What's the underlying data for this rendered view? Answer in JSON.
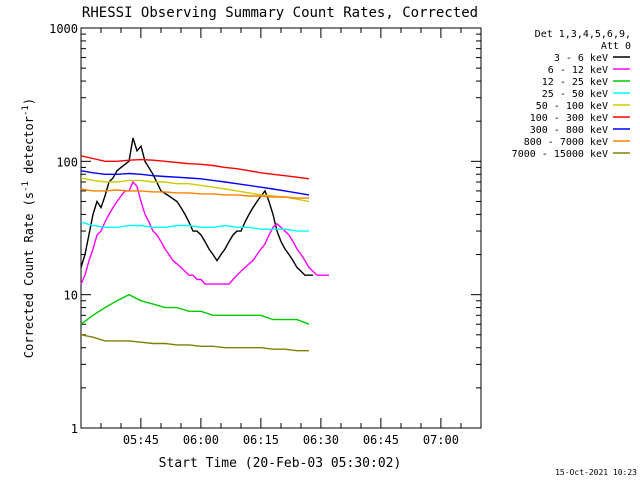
{
  "chart_data": {
    "type": "line",
    "title": "RHESSI Observing Summary Count Rates, Corrected",
    "xlabel": "Start Time (20-Feb-03 05:30:02)",
    "ylabel": "Corrected Count Rate (s",
    "ylabel_sup1": "-1",
    "ylabel_mid": " detector",
    "ylabel_sup2": "-1",
    "ylabel_end": ")",
    "timestamp": "15-Oct-2021 10:23",
    "yscale": "log",
    "ylim": [
      1,
      1000
    ],
    "xlim_minutes": [
      0,
      100
    ],
    "ytick_values": [
      1,
      10,
      100,
      1000
    ],
    "ytick_labels": [
      "1",
      "10",
      "100",
      "1000"
    ],
    "xticks": [
      {
        "label": "05:45",
        "minute": 14.97
      },
      {
        "label": "06:00",
        "minute": 29.97
      },
      {
        "label": "06:15",
        "minute": 44.97
      },
      {
        "label": "06:30",
        "minute": 59.97
      },
      {
        "label": "06:45",
        "minute": 74.97
      },
      {
        "label": "07:00",
        "minute": 89.97
      }
    ],
    "legend": {
      "header": [
        "Det 1,3,4,5,6,9,",
        "Att 0"
      ],
      "position": "right"
    },
    "series": [
      {
        "name": "3 - 6 keV",
        "color": "#000000",
        "points": [
          [
            0,
            16
          ],
          [
            1,
            20
          ],
          [
            3,
            40
          ],
          [
            4,
            50
          ],
          [
            5,
            45
          ],
          [
            6,
            55
          ],
          [
            7,
            70
          ],
          [
            8,
            75
          ],
          [
            9,
            85
          ],
          [
            10,
            90
          ],
          [
            11,
            95
          ],
          [
            12,
            100
          ],
          [
            13,
            150
          ],
          [
            14,
            120
          ],
          [
            15,
            130
          ],
          [
            16,
            100
          ],
          [
            18,
            80
          ],
          [
            20,
            60
          ],
          [
            22,
            55
          ],
          [
            24,
            50
          ],
          [
            25,
            45
          ],
          [
            26,
            40
          ],
          [
            27,
            35
          ],
          [
            28,
            30
          ],
          [
            29,
            30
          ],
          [
            30,
            28
          ],
          [
            31,
            25
          ],
          [
            32,
            22
          ],
          [
            33,
            20
          ],
          [
            34,
            18
          ],
          [
            35,
            20
          ],
          [
            36,
            22
          ],
          [
            37,
            25
          ],
          [
            38,
            28
          ],
          [
            39,
            30
          ],
          [
            40,
            30
          ],
          [
            41,
            35
          ],
          [
            42,
            40
          ],
          [
            43,
            45
          ],
          [
            44,
            50
          ],
          [
            45,
            55
          ],
          [
            46,
            60
          ],
          [
            47,
            50
          ],
          [
            48,
            40
          ],
          [
            49,
            30
          ],
          [
            50,
            25
          ],
          [
            51,
            22
          ],
          [
            52,
            20
          ],
          [
            53,
            18
          ],
          [
            54,
            16
          ],
          [
            55,
            15
          ],
          [
            56,
            14
          ],
          [
            57,
            14
          ],
          [
            58,
            14
          ]
        ]
      },
      {
        "name": "6 - 12 keV",
        "color": "#ff00ff",
        "points": [
          [
            0,
            12
          ],
          [
            1,
            14
          ],
          [
            2,
            18
          ],
          [
            3,
            22
          ],
          [
            4,
            28
          ],
          [
            5,
            30
          ],
          [
            6,
            35
          ],
          [
            7,
            40
          ],
          [
            8,
            45
          ],
          [
            9,
            50
          ],
          [
            10,
            55
          ],
          [
            11,
            60
          ],
          [
            12,
            60
          ],
          [
            13,
            70
          ],
          [
            14,
            65
          ],
          [
            15,
            50
          ],
          [
            16,
            40
          ],
          [
            17,
            35
          ],
          [
            18,
            30
          ],
          [
            19,
            28
          ],
          [
            20,
            25
          ],
          [
            21,
            22
          ],
          [
            22,
            20
          ],
          [
            23,
            18
          ],
          [
            24,
            17
          ],
          [
            25,
            16
          ],
          [
            26,
            15
          ],
          [
            27,
            14
          ],
          [
            28,
            14
          ],
          [
            29,
            13
          ],
          [
            30,
            13
          ],
          [
            31,
            12
          ],
          [
            32,
            12
          ],
          [
            33,
            12
          ],
          [
            34,
            12
          ],
          [
            35,
            12
          ],
          [
            36,
            12
          ],
          [
            37,
            12
          ],
          [
            38,
            13
          ],
          [
            39,
            14
          ],
          [
            40,
            15
          ],
          [
            41,
            16
          ],
          [
            42,
            17
          ],
          [
            43,
            18
          ],
          [
            44,
            20
          ],
          [
            45,
            22
          ],
          [
            46,
            24
          ],
          [
            47,
            28
          ],
          [
            48,
            32
          ],
          [
            49,
            34
          ],
          [
            50,
            32
          ],
          [
            51,
            30
          ],
          [
            52,
            28
          ],
          [
            53,
            25
          ],
          [
            54,
            22
          ],
          [
            55,
            20
          ],
          [
            56,
            18
          ],
          [
            57,
            16
          ],
          [
            58,
            15
          ],
          [
            59,
            14
          ],
          [
            60,
            14
          ],
          [
            61,
            14
          ],
          [
            62,
            14
          ]
        ]
      },
      {
        "name": "12 - 25 keV",
        "color": "#00cc00",
        "points": [
          [
            0,
            6
          ],
          [
            3,
            7
          ],
          [
            6,
            8
          ],
          [
            9,
            9
          ],
          [
            12,
            10
          ],
          [
            15,
            9
          ],
          [
            18,
            8.5
          ],
          [
            21,
            8
          ],
          [
            24,
            8
          ],
          [
            27,
            7.5
          ],
          [
            30,
            7.5
          ],
          [
            33,
            7
          ],
          [
            36,
            7
          ],
          [
            39,
            7
          ],
          [
            42,
            7
          ],
          [
            45,
            7
          ],
          [
            48,
            6.5
          ],
          [
            51,
            6.5
          ],
          [
            54,
            6.5
          ],
          [
            57,
            6
          ]
        ]
      },
      {
        "name": "25 - 50 keV",
        "color": "#00ffff",
        "points": [
          [
            0,
            35
          ],
          [
            3,
            33
          ],
          [
            6,
            32
          ],
          [
            9,
            32
          ],
          [
            12,
            33
          ],
          [
            15,
            33
          ],
          [
            18,
            32
          ],
          [
            21,
            32
          ],
          [
            24,
            33
          ],
          [
            27,
            33
          ],
          [
            30,
            32
          ],
          [
            33,
            32
          ],
          [
            36,
            33
          ],
          [
            39,
            32
          ],
          [
            42,
            32
          ],
          [
            45,
            31
          ],
          [
            48,
            31
          ],
          [
            51,
            31
          ],
          [
            54,
            30
          ],
          [
            57,
            30
          ]
        ]
      },
      {
        "name": "50 - 100 keV",
        "color": "#cccc00",
        "points": [
          [
            0,
            75
          ],
          [
            3,
            72
          ],
          [
            6,
            70
          ],
          [
            9,
            70
          ],
          [
            12,
            72
          ],
          [
            15,
            72
          ],
          [
            18,
            70
          ],
          [
            21,
            70
          ],
          [
            24,
            68
          ],
          [
            27,
            68
          ],
          [
            30,
            66
          ],
          [
            33,
            64
          ],
          [
            36,
            62
          ],
          [
            39,
            60
          ],
          [
            42,
            58
          ],
          [
            45,
            56
          ],
          [
            48,
            55
          ],
          [
            51,
            54
          ],
          [
            54,
            52
          ],
          [
            57,
            50
          ]
        ]
      },
      {
        "name": "100 - 300 keV",
        "color": "#ff0000",
        "points": [
          [
            0,
            110
          ],
          [
            3,
            105
          ],
          [
            6,
            100
          ],
          [
            9,
            100
          ],
          [
            12,
            102
          ],
          [
            15,
            103
          ],
          [
            18,
            102
          ],
          [
            21,
            100
          ],
          [
            24,
            98
          ],
          [
            27,
            96
          ],
          [
            30,
            95
          ],
          [
            33,
            93
          ],
          [
            36,
            90
          ],
          [
            39,
            88
          ],
          [
            42,
            85
          ],
          [
            45,
            82
          ],
          [
            48,
            80
          ],
          [
            51,
            78
          ],
          [
            54,
            76
          ],
          [
            57,
            74
          ]
        ]
      },
      {
        "name": "300 - 800 keV",
        "color": "#0000ff",
        "points": [
          [
            0,
            85
          ],
          [
            3,
            82
          ],
          [
            6,
            80
          ],
          [
            9,
            80
          ],
          [
            12,
            81
          ],
          [
            15,
            80
          ],
          [
            18,
            78
          ],
          [
            21,
            77
          ],
          [
            24,
            76
          ],
          [
            27,
            75
          ],
          [
            30,
            74
          ],
          [
            33,
            72
          ],
          [
            36,
            70
          ],
          [
            39,
            68
          ],
          [
            42,
            66
          ],
          [
            45,
            64
          ],
          [
            48,
            62
          ],
          [
            51,
            60
          ],
          [
            54,
            58
          ],
          [
            57,
            56
          ]
        ]
      },
      {
        "name": "800 - 7000 keV",
        "color": "#ff8000",
        "points": [
          [
            0,
            62
          ],
          [
            3,
            60
          ],
          [
            6,
            60
          ],
          [
            9,
            61
          ],
          [
            12,
            60
          ],
          [
            15,
            60
          ],
          [
            18,
            59
          ],
          [
            21,
            59
          ],
          [
            24,
            58
          ],
          [
            27,
            58
          ],
          [
            30,
            57
          ],
          [
            33,
            57
          ],
          [
            36,
            56
          ],
          [
            39,
            56
          ],
          [
            42,
            55
          ],
          [
            45,
            55
          ],
          [
            48,
            54
          ],
          [
            51,
            54
          ],
          [
            54,
            53
          ],
          [
            57,
            53
          ]
        ]
      },
      {
        "name": "7000 - 15000 keV",
        "color": "#808000",
        "points": [
          [
            0,
            5
          ],
          [
            3,
            4.8
          ],
          [
            6,
            4.5
          ],
          [
            9,
            4.5
          ],
          [
            12,
            4.5
          ],
          [
            15,
            4.4
          ],
          [
            18,
            4.3
          ],
          [
            21,
            4.3
          ],
          [
            24,
            4.2
          ],
          [
            27,
            4.2
          ],
          [
            30,
            4.1
          ],
          [
            33,
            4.1
          ],
          [
            36,
            4
          ],
          [
            39,
            4
          ],
          [
            42,
            4
          ],
          [
            45,
            4
          ],
          [
            48,
            3.9
          ],
          [
            51,
            3.9
          ],
          [
            54,
            3.8
          ],
          [
            57,
            3.8
          ]
        ]
      }
    ]
  }
}
